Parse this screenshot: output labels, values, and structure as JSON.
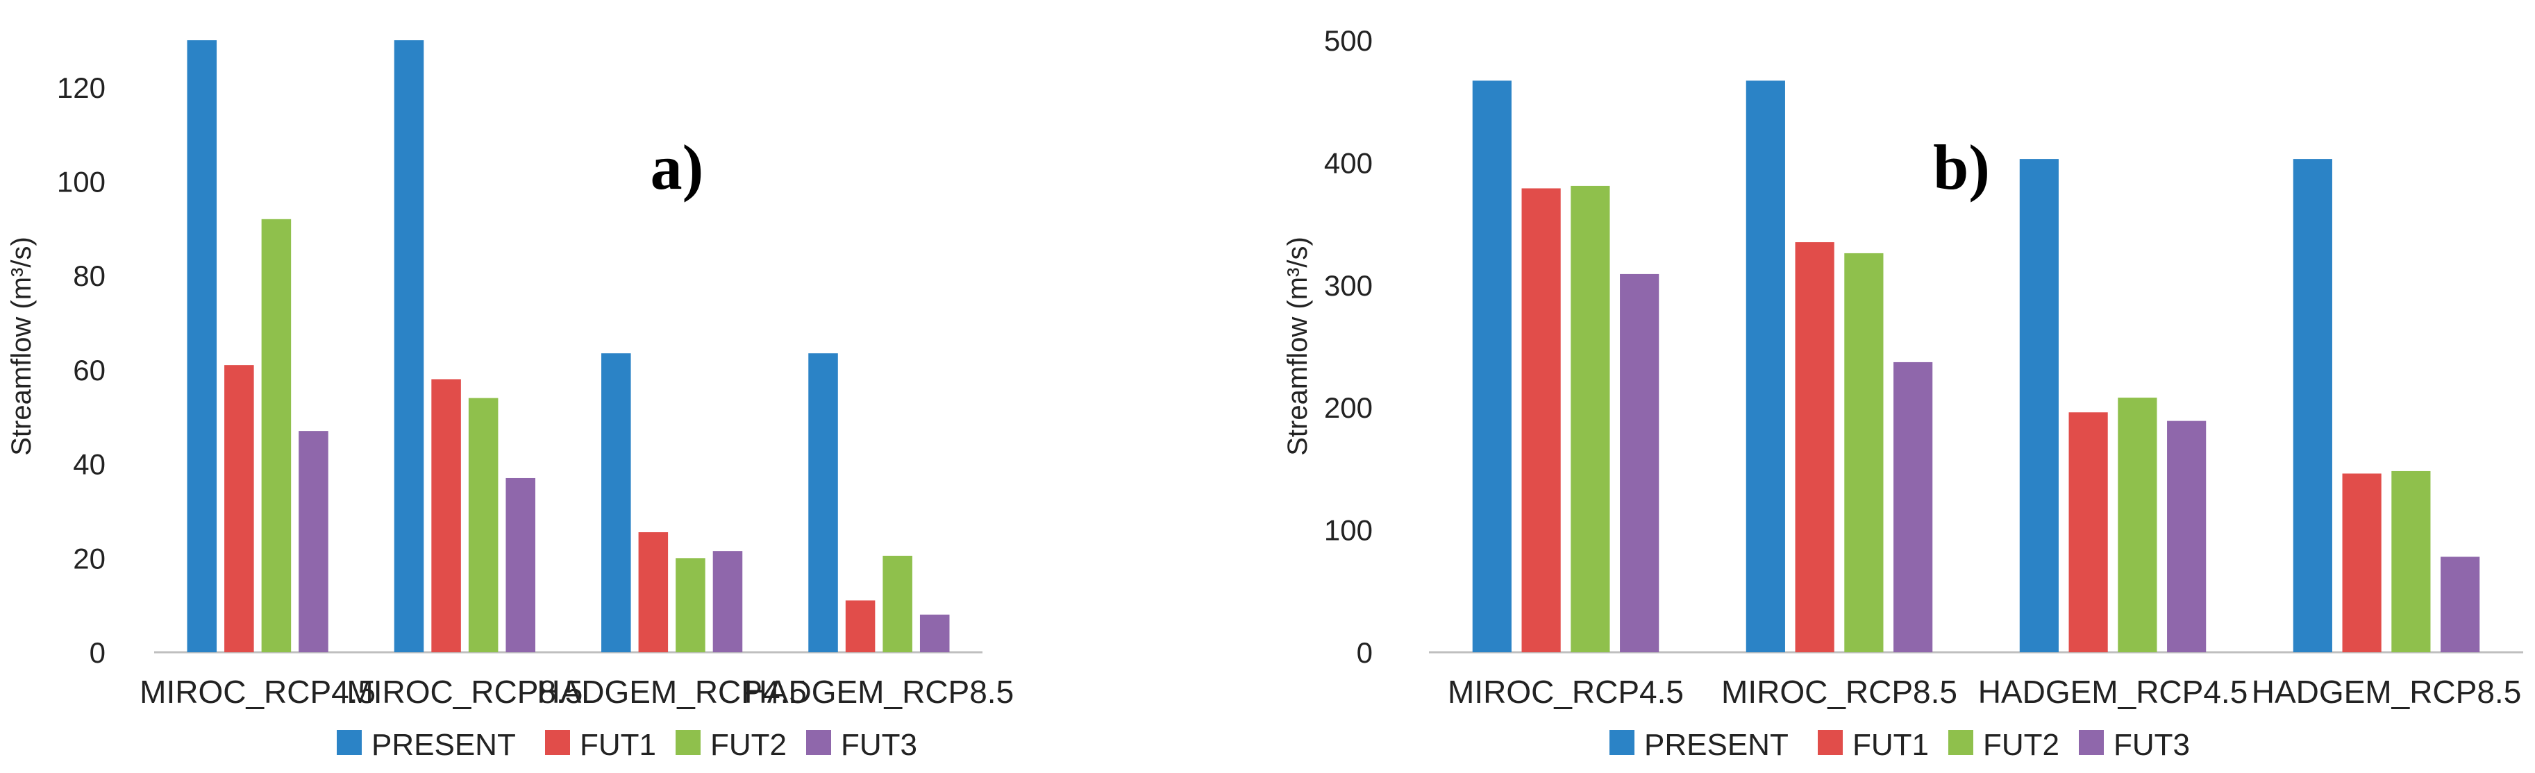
{
  "chart_data": [
    {
      "type": "bar",
      "panel_label": "a)",
      "title": "",
      "xlabel": "",
      "ylabel": "Streamflow (m³/s)",
      "ylim": [
        0,
        130
      ],
      "yticks": [
        0,
        20,
        40,
        60,
        80,
        100,
        120
      ],
      "grid": false,
      "legend": "bottom",
      "categories": [
        "MIROC_RCP4.5",
        "MIROC_RCP8.5",
        "HADGEM_RCP4.5",
        "HADGEM_RCP8.5"
      ],
      "series": [
        {
          "name": "PRESENT",
          "color": "#2b83c6",
          "values": [
            130,
            130,
            63.5,
            63.5
          ]
        },
        {
          "name": "FUT1",
          "color": "#e14d4a",
          "values": [
            61,
            58,
            25.5,
            11
          ]
        },
        {
          "name": "FUT2",
          "color": "#8fc04c",
          "values": [
            92,
            54,
            20,
            20.5
          ]
        },
        {
          "name": "FUT3",
          "color": "#8f67ab",
          "values": [
            47,
            37,
            21.5,
            8
          ]
        }
      ]
    },
    {
      "type": "bar",
      "panel_label": "b)",
      "title": "",
      "xlabel": "",
      "ylabel": "Streamflow (m³/s)",
      "ylim": [
        0,
        500
      ],
      "yticks": [
        0,
        100,
        200,
        300,
        400,
        500
      ],
      "grid": false,
      "legend": "bottom",
      "categories": [
        "MIROC_RCP4.5",
        "MIROC_RCP8.5",
        "HADGEM_RCP4.5",
        "HADGEM_RCP8.5"
      ],
      "series": [
        {
          "name": "PRESENT",
          "color": "#2b83c6",
          "values": [
            467,
            467,
            403,
            403
          ]
        },
        {
          "name": "FUT1",
          "color": "#e14d4a",
          "values": [
            379,
            335,
            196,
            146
          ]
        },
        {
          "name": "FUT2",
          "color": "#8fc04c",
          "values": [
            381,
            326,
            208,
            148
          ]
        },
        {
          "name": "FUT3",
          "color": "#8f67ab",
          "values": [
            309,
            237,
            189,
            78
          ]
        }
      ]
    }
  ]
}
